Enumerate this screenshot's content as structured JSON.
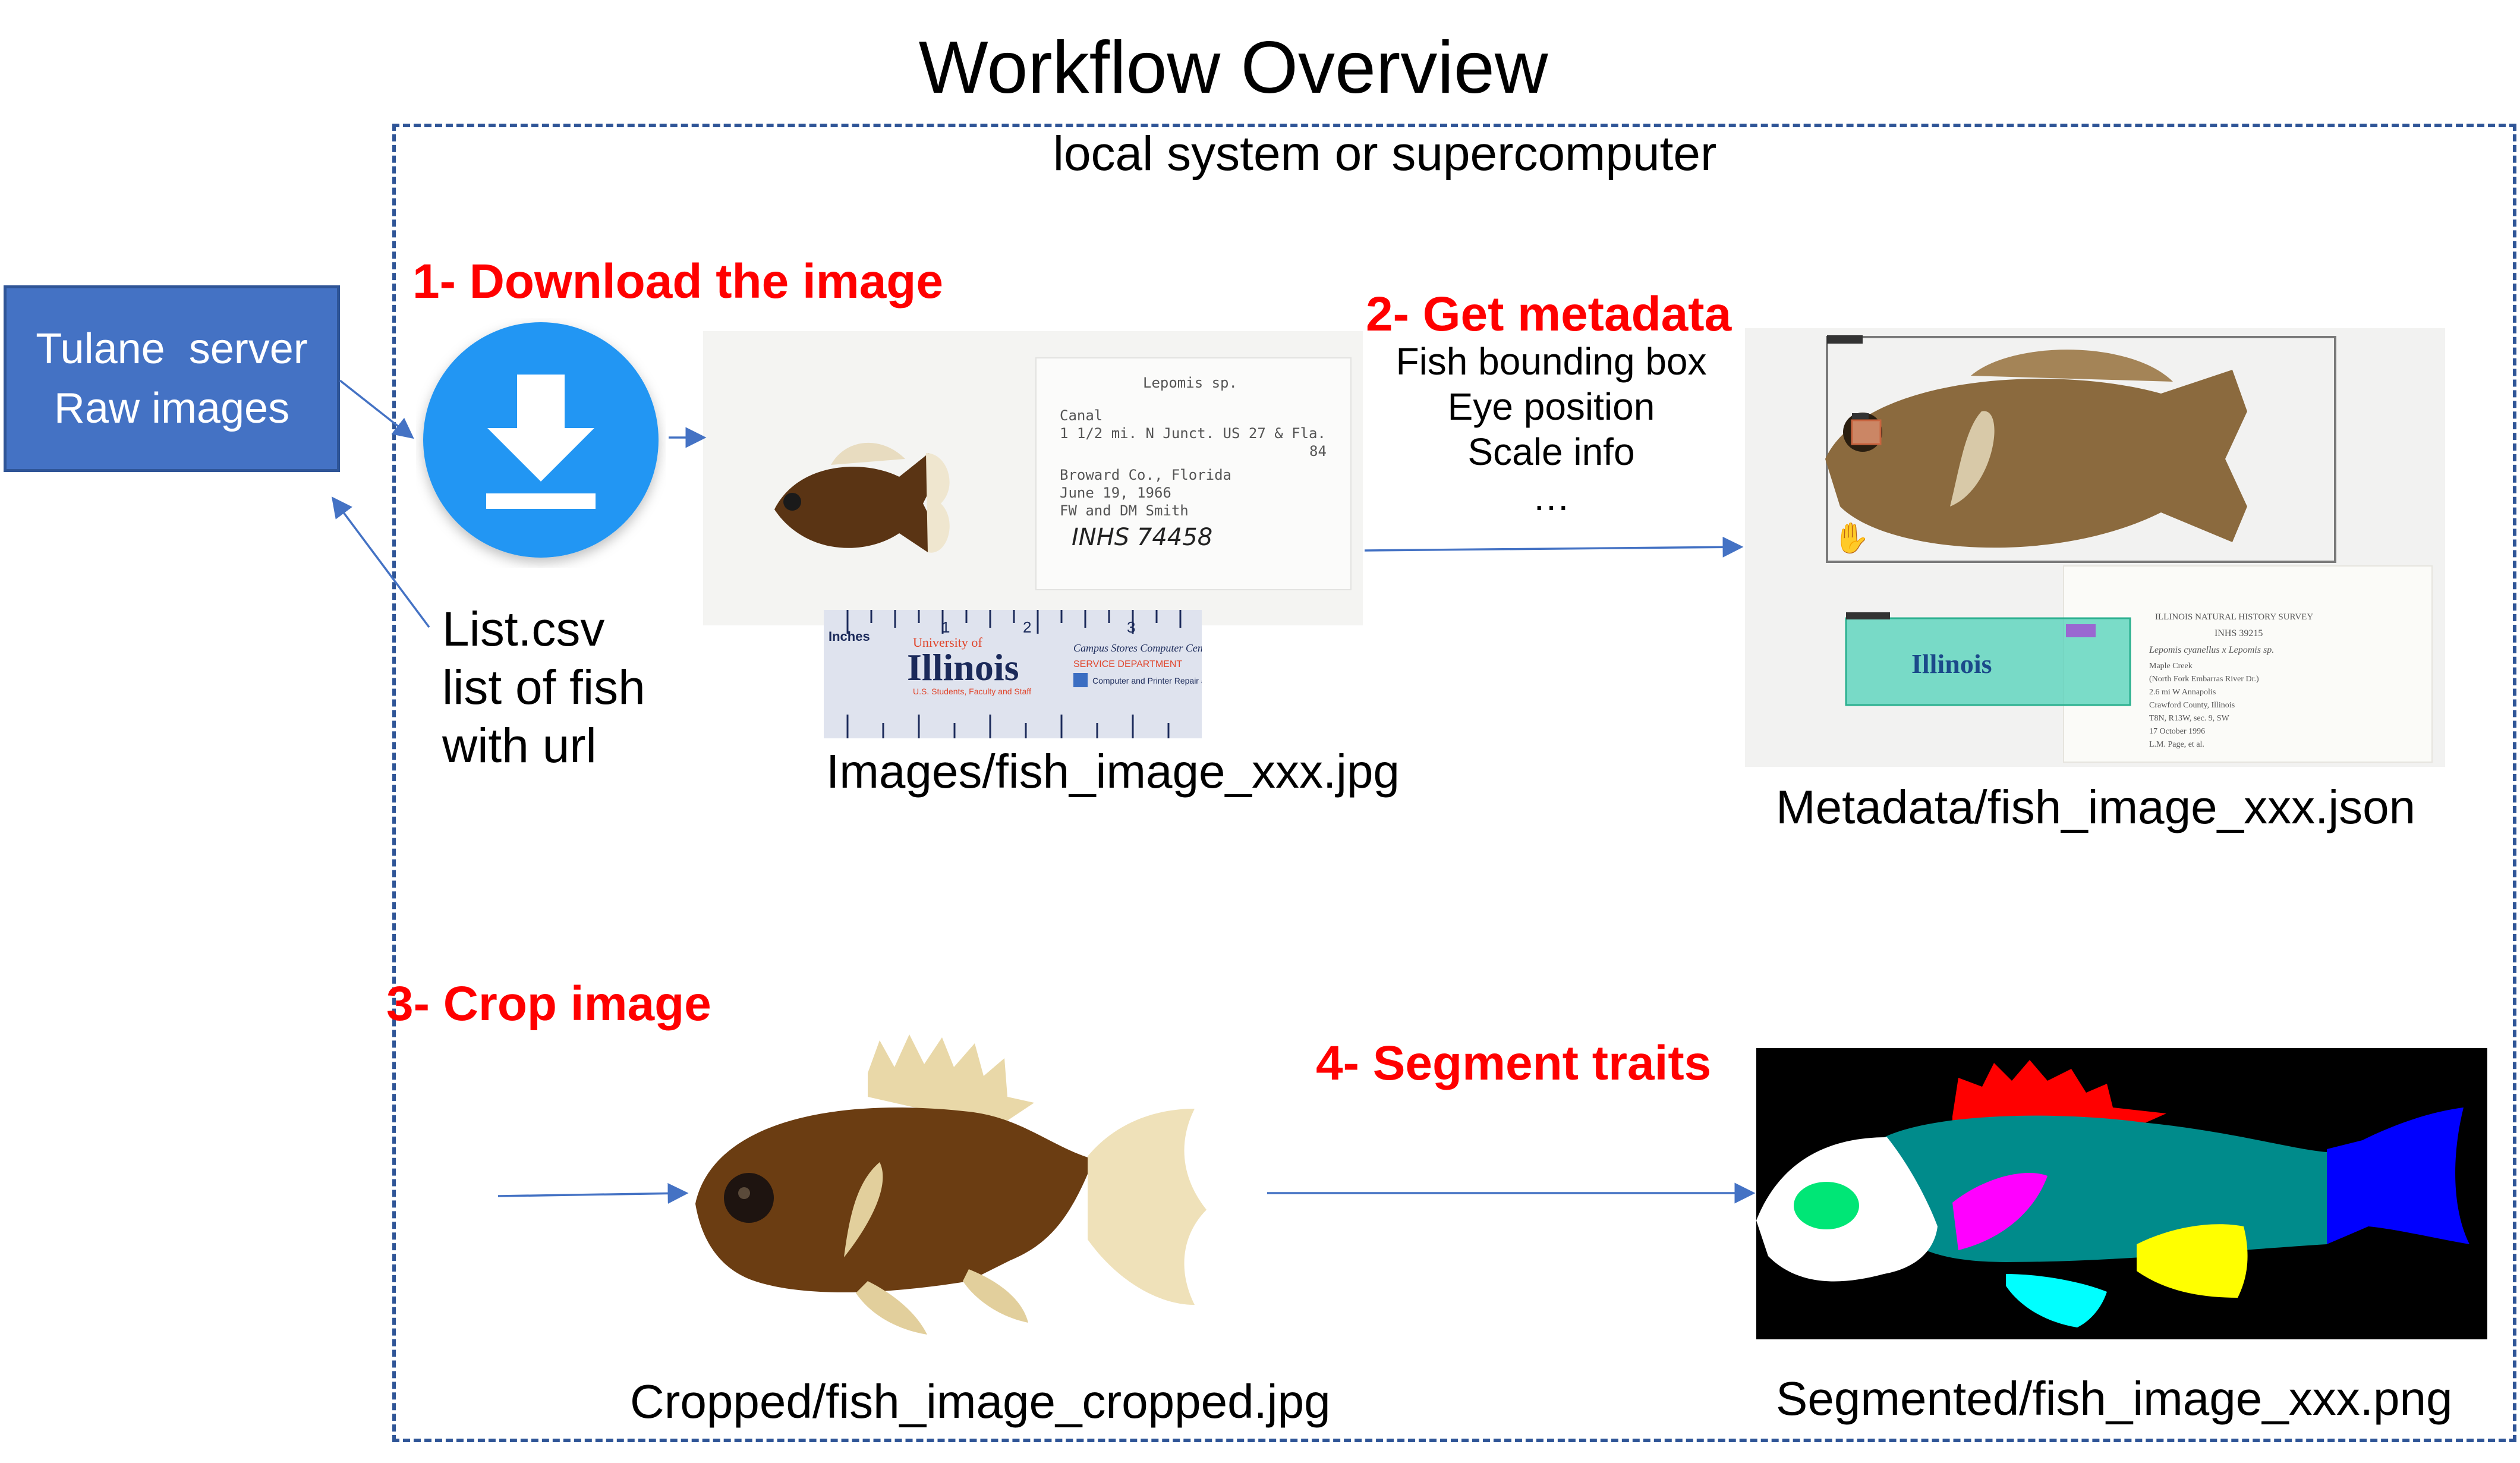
{
  "title": "Workflow Overview",
  "frame_label": "local system or supercomputer",
  "server": {
    "line1": "Tulane  server",
    "line2": "Raw images"
  },
  "steps": {
    "download": "1- Download the image",
    "metadata": "2- Get metadata",
    "crop": "3- Crop image",
    "segment": "4- Segment traits"
  },
  "list_csv": {
    "line1": "List.csv",
    "line2": "list of fish",
    "line3": "with url"
  },
  "metadata_items": [
    "Fish bounding box",
    "Eye position",
    "Scale info",
    "…"
  ],
  "captions": {
    "images": "Images/fish_image_xxx.jpg",
    "metadata": "Metadata/fish_image_xxx.json",
    "cropped": "Cropped/fish_image_cropped.jpg",
    "segmented": "Segmented/fish_image_xxx.png"
  },
  "specimen_label": {
    "line1": "Lepomis sp.",
    "line2": "Canal",
    "line3": "1 1/2 mi. N Junct. US 27 & Fla.",
    "line4": "84",
    "line5": "Broward Co., Florida",
    "line6": "June 19, 1966",
    "line7": "FW and DM Smith",
    "line8": "INHS 74458"
  },
  "ruler": {
    "units": "Inches",
    "n1": "1",
    "n2": "2",
    "n3": "3",
    "brand": "Illinois",
    "top_text": "University of",
    "sub_text": "U.S. Students, Faculty and Staff",
    "service_title": "Campus Stores Computer Center",
    "service_dept": "SERVICE DEPARTMENT",
    "service_line": "Computer and Printer Repair and Upgrades"
  },
  "meta_label": {
    "line1": "ILLINOIS NATURAL HISTORY SURVEY",
    "line2": "INHS  39215",
    "line3": "Lepomis cyanellus x Lepomis sp.",
    "line4": "Maple Creek",
    "line5": "(North Fork Embarras River Dr.)",
    "line6": "2.6 mi W Annapolis",
    "line7": "Crawford County, Illinois",
    "line8": "T8N, R13W, sec. 9, SW",
    "line9": "17 October 1996",
    "line10": "L.M. Page, et al."
  },
  "colors": {
    "frame": "#2f5597",
    "server_fill": "#4472c4",
    "step_red": "#ff0000",
    "arrow": "#4472c4",
    "download_icon": "#2196f3",
    "seg_body": "#008b8b",
    "seg_head": "#ffffff",
    "seg_eye": "#00e676",
    "seg_dorsal": "#ff0000",
    "seg_caudal": "#0000ff",
    "seg_pectoral": "#ff00ff",
    "seg_anal": "#ffff00",
    "seg_pelvic": "#00ffff"
  }
}
